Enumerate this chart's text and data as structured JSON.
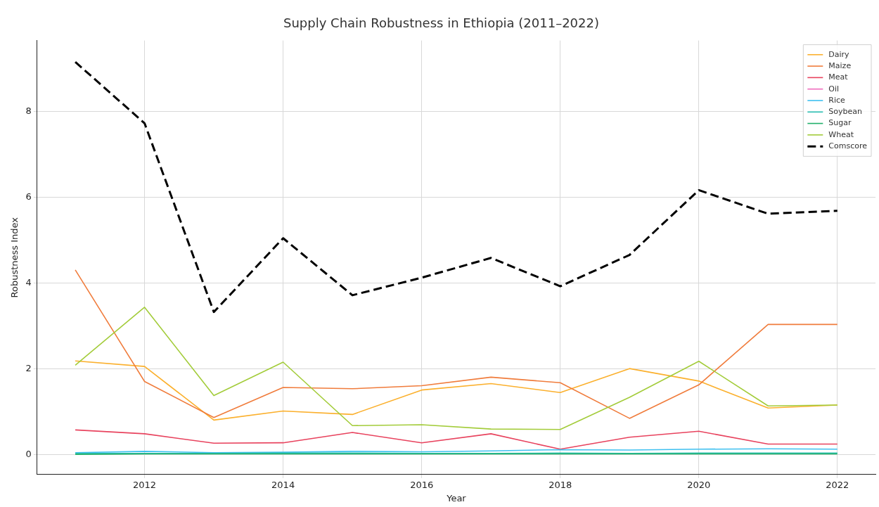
{
  "chart_data": {
    "type": "line",
    "title": "Supply Chain Robustness in Ethiopia (2011–2022)",
    "xlabel": "Year",
    "ylabel": "Robustness Index",
    "x": [
      2011,
      2012,
      2013,
      2014,
      2015,
      2016,
      2017,
      2018,
      2019,
      2020,
      2021,
      2022
    ],
    "xlim": [
      2010.45,
      2022.55
    ],
    "xticks": [
      2012,
      2014,
      2016,
      2018,
      2020,
      2022
    ],
    "ylim": [
      -0.47,
      9.65
    ],
    "yticks": [
      0,
      2,
      4,
      6,
      8
    ],
    "grid": true,
    "legend": "top right",
    "marker": "none",
    "line_style": "solid",
    "series": [
      {
        "name": "Dairy",
        "color": "#fbb02d",
        "values": [
          2.18,
          2.05,
          0.8,
          1.01,
          0.93,
          1.5,
          1.65,
          1.44,
          2.0,
          1.71,
          1.08,
          1.15
        ]
      },
      {
        "name": "Maize",
        "color": "#f07c3c",
        "values": [
          4.3,
          1.7,
          0.86,
          1.56,
          1.53,
          1.6,
          1.8,
          1.67,
          0.84,
          1.62,
          3.03,
          3.03
        ]
      },
      {
        "name": "Meat",
        "color": "#e8435e",
        "values": [
          0.57,
          0.48,
          0.26,
          0.27,
          0.51,
          0.27,
          0.48,
          0.12,
          0.4,
          0.54,
          0.24,
          0.24
        ]
      },
      {
        "name": "Oil",
        "color": "#f06bbd",
        "values": [
          null,
          null,
          null,
          null,
          null,
          null,
          null,
          null,
          null,
          null,
          null,
          null
        ]
      },
      {
        "name": "Rice",
        "color": "#3ec0f0",
        "values": [
          0.04,
          0.07,
          0.04,
          0.05,
          0.07,
          0.06,
          0.08,
          0.11,
          0.1,
          0.12,
          0.13,
          0.12
        ]
      },
      {
        "name": "Soybean",
        "color": "#2bbfb3",
        "values": [
          0.02,
          0.02,
          0.02,
          0.03,
          0.03,
          0.02,
          0.02,
          0.03,
          0.02,
          0.03,
          0.03,
          0.03
        ]
      },
      {
        "name": "Sugar",
        "color": "#21b06a",
        "values": [
          0.0,
          0.01,
          0.01,
          0.01,
          0.01,
          0.01,
          0.01,
          0.01,
          0.01,
          0.01,
          0.01,
          0.01
        ]
      },
      {
        "name": "Wheat",
        "color": "#a3cc3a",
        "values": [
          2.08,
          3.43,
          1.37,
          2.15,
          0.67,
          0.69,
          0.59,
          0.58,
          1.33,
          2.17,
          1.13,
          1.15
        ]
      },
      {
        "name": "Comscore",
        "color": "#000000",
        "line_style": "dashed",
        "values": [
          9.15,
          7.72,
          3.32,
          5.04,
          3.71,
          4.12,
          4.58,
          3.92,
          4.65,
          6.16,
          5.61,
          5.68
        ]
      }
    ]
  }
}
